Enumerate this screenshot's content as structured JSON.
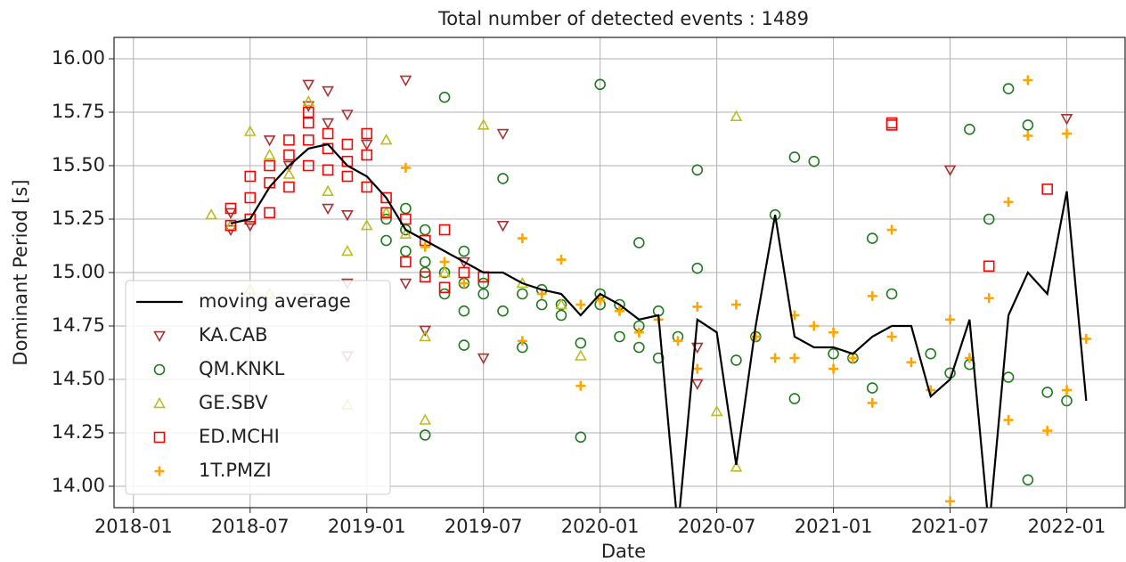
{
  "chart_data": {
    "type": "scatter",
    "title": "Total number of detected events : 1489",
    "x_label": "Date",
    "y_label": "Dominant Period [s]",
    "xlim": [
      "2017-12",
      "2022-04"
    ],
    "xticks": [
      "2018-01",
      "2018-07",
      "2019-01",
      "2019-07",
      "2020-01",
      "2020-07",
      "2021-01",
      "2021-07",
      "2022-01"
    ],
    "ylim": [
      13.9,
      16.1
    ],
    "yticks": [
      {
        "value": 14,
        "label": "14.00"
      },
      {
        "value": 14.25,
        "label": "14.25"
      },
      {
        "value": 14.5,
        "label": "14.50"
      },
      {
        "value": 14.75,
        "label": "14.75"
      },
      {
        "value": 15,
        "label": "15.00"
      },
      {
        "value": 15.25,
        "label": "15.25"
      },
      {
        "value": 15.5,
        "label": "15.50"
      },
      {
        "value": 15.75,
        "label": "15.75"
      },
      {
        "value": 16,
        "label": "16.00"
      }
    ],
    "grid": true,
    "legend": "lower left",
    "series": [
      {
        "name": "moving average",
        "style": "line",
        "color": "#000000",
        "x": [
          "2018-06",
          "2018-07",
          "2018-08",
          "2018-09",
          "2018-10",
          "2018-11",
          "2018-12",
          "2019-01",
          "2019-02",
          "2019-03",
          "2019-04",
          "2019-05",
          "2019-06",
          "2019-07",
          "2019-08",
          "2019-09",
          "2019-10",
          "2019-11",
          "2019-12",
          "2020-01",
          "2020-02",
          "2020-03",
          "2020-04",
          "2020-05",
          "2020-06",
          "2020-07",
          "2020-08",
          "2020-09",
          "2020-10",
          "2020-11",
          "2020-12",
          "2021-01",
          "2021-02",
          "2021-03",
          "2021-04",
          "2021-05",
          "2021-06",
          "2021-07",
          "2021-08",
          "2021-09",
          "2021-10",
          "2021-11",
          "2021-12",
          "2022-01",
          "2022-02"
        ],
        "values": [
          15.23,
          15.25,
          15.4,
          15.5,
          15.58,
          15.6,
          15.5,
          15.45,
          15.35,
          15.2,
          15.15,
          15.1,
          15.05,
          15.0,
          15.0,
          14.95,
          14.92,
          14.9,
          14.8,
          14.9,
          14.85,
          14.78,
          14.8,
          13.8,
          14.78,
          14.72,
          14.1,
          14.75,
          15.27,
          14.7,
          14.65,
          14.65,
          14.62,
          14.7,
          14.75,
          14.75,
          14.42,
          14.5,
          14.78,
          13.8,
          14.8,
          15.0,
          14.9,
          15.38,
          14.4
        ]
      },
      {
        "name": "KA.CAB",
        "style": "marker",
        "marker": "triangle-down",
        "color": "#a83232",
        "x": [
          "2018-06",
          "2018-06",
          "2018-07",
          "2018-08",
          "2018-09",
          "2018-10",
          "2018-10",
          "2018-11",
          "2018-11",
          "2018-12",
          "2018-12",
          "2018-12",
          "2018-12",
          "2018-11",
          "2019-01",
          "2019-03",
          "2019-03",
          "2019-04",
          "2019-06",
          "2019-07",
          "2019-08",
          "2019-08",
          "2020-06",
          "2020-06",
          "2021-07",
          "2022-01",
          "2018-10"
        ],
        "values": [
          15.2,
          15.28,
          15.22,
          15.62,
          15.5,
          15.88,
          15.78,
          15.7,
          15.85,
          15.27,
          15.74,
          14.95,
          14.61,
          15.3,
          15.6,
          15.9,
          14.95,
          14.73,
          15.05,
          14.6,
          15.65,
          15.22,
          14.48,
          14.65,
          15.48,
          15.72,
          14.88
        ]
      },
      {
        "name": "QM.KNKL",
        "style": "marker",
        "marker": "circle",
        "color": "#1f7a1f",
        "x": [
          "2019-02",
          "2019-02",
          "2019-03",
          "2019-03",
          "2019-03",
          "2019-04",
          "2019-04",
          "2019-04",
          "2019-05",
          "2019-05",
          "2019-05",
          "2019-06",
          "2019-06",
          "2019-06",
          "2019-07",
          "2019-07",
          "2019-08",
          "2019-08",
          "2019-09",
          "2019-09",
          "2019-10",
          "2019-10",
          "2019-11",
          "2019-12",
          "2019-12",
          "2020-01",
          "2020-01",
          "2020-02",
          "2020-02",
          "2020-03",
          "2020-03",
          "2020-04",
          "2020-04",
          "2020-05",
          "2020-06",
          "2020-06",
          "2020-08",
          "2020-09",
          "2020-10",
          "2020-11",
          "2020-11",
          "2020-12",
          "2021-01",
          "2021-02",
          "2021-03",
          "2021-03",
          "2021-04",
          "2021-06",
          "2021-07",
          "2021-08",
          "2021-08",
          "2021-09",
          "2021-10",
          "2021-10",
          "2021-11",
          "2021-11",
          "2021-12",
          "2022-01",
          "2019-04",
          "2019-06",
          "2019-11",
          "2020-01",
          "2020-03"
        ],
        "values": [
          15.25,
          15.15,
          15.3,
          15.1,
          15.2,
          15.05,
          15.2,
          14.24,
          15.82,
          15.0,
          14.9,
          15.1,
          14.66,
          14.95,
          14.9,
          14.95,
          14.82,
          15.44,
          14.65,
          14.9,
          14.85,
          14.92,
          14.8,
          14.67,
          14.23,
          14.9,
          15.88,
          14.85,
          14.7,
          14.75,
          15.14,
          14.82,
          14.6,
          14.7,
          15.02,
          15.48,
          14.59,
          14.7,
          15.27,
          15.54,
          14.41,
          15.52,
          14.62,
          14.6,
          14.46,
          15.16,
          14.9,
          14.62,
          14.53,
          14.57,
          15.67,
          15.25,
          15.86,
          14.51,
          15.69,
          14.03,
          14.44,
          14.4,
          15.0,
          14.82,
          14.85,
          14.85,
          14.65
        ]
      },
      {
        "name": "GE.SBV",
        "style": "marker",
        "marker": "triangle-up",
        "color": "#bcbd22",
        "x": [
          "2018-05",
          "2018-06",
          "2018-07",
          "2018-07",
          "2018-08",
          "2018-08",
          "2018-09",
          "2018-10",
          "2018-11",
          "2018-12",
          "2018-12",
          "2019-01",
          "2019-02",
          "2019-02",
          "2019-03",
          "2019-04",
          "2019-04",
          "2019-05",
          "2019-07",
          "2019-09",
          "2019-11",
          "2019-12",
          "2020-07",
          "2020-08",
          "2020-08"
        ],
        "values": [
          15.27,
          15.22,
          15.66,
          14.92,
          15.55,
          14.9,
          15.46,
          15.8,
          15.38,
          15.1,
          14.38,
          15.22,
          15.62,
          15.28,
          15.18,
          14.7,
          14.31,
          15.0,
          15.69,
          14.95,
          14.85,
          14.61,
          14.35,
          15.73,
          14.09
        ]
      },
      {
        "name": "ED.MCHI",
        "style": "marker",
        "marker": "square",
        "color": "#ff0000",
        "x": [
          "2018-06",
          "2018-06",
          "2018-07",
          "2018-07",
          "2018-07",
          "2018-08",
          "2018-08",
          "2018-08",
          "2018-09",
          "2018-09",
          "2018-09",
          "2018-10",
          "2018-10",
          "2018-10",
          "2018-10",
          "2018-11",
          "2018-11",
          "2018-11",
          "2018-12",
          "2018-12",
          "2018-12",
          "2019-01",
          "2019-01",
          "2019-01",
          "2019-02",
          "2019-02",
          "2019-03",
          "2019-03",
          "2019-04",
          "2019-04",
          "2019-05",
          "2019-05",
          "2019-06",
          "2019-07",
          "2021-04",
          "2021-04",
          "2021-09",
          "2021-12"
        ],
        "values": [
          15.22,
          15.3,
          15.25,
          15.35,
          15.45,
          15.42,
          15.5,
          15.28,
          15.55,
          15.62,
          15.4,
          15.7,
          15.75,
          15.5,
          15.62,
          15.58,
          15.65,
          15.48,
          15.52,
          15.6,
          15.45,
          15.55,
          15.4,
          15.65,
          15.35,
          15.28,
          15.25,
          15.05,
          15.15,
          14.98,
          14.93,
          15.2,
          15.0,
          14.98,
          15.7,
          15.69,
          15.03,
          15.39
        ]
      },
      {
        "name": "1T.PMZI",
        "style": "marker",
        "marker": "plus",
        "color": "#ffa500",
        "x": [
          "2019-03",
          "2019-04",
          "2019-05",
          "2019-06",
          "2019-09",
          "2019-09",
          "2019-10",
          "2019-11",
          "2019-12",
          "2019-12",
          "2020-01",
          "2020-02",
          "2020-03",
          "2020-04",
          "2020-05",
          "2020-06",
          "2020-06",
          "2020-08",
          "2020-09",
          "2020-10",
          "2020-11",
          "2020-11",
          "2020-12",
          "2021-01",
          "2021-01",
          "2021-02",
          "2021-03",
          "2021-03",
          "2021-04",
          "2021-04",
          "2021-05",
          "2021-06",
          "2021-07",
          "2021-07",
          "2021-08",
          "2021-09",
          "2021-10",
          "2021-10",
          "2021-11",
          "2021-11",
          "2021-12",
          "2022-01",
          "2022-01",
          "2022-02"
        ],
        "values": [
          15.49,
          15.12,
          15.05,
          14.95,
          15.16,
          14.68,
          14.9,
          15.06,
          14.85,
          14.47,
          14.87,
          14.82,
          14.72,
          14.78,
          14.68,
          14.84,
          14.55,
          14.85,
          14.7,
          14.6,
          14.8,
          14.6,
          14.75,
          14.72,
          14.55,
          14.6,
          14.89,
          14.39,
          14.7,
          15.2,
          14.58,
          14.45,
          13.93,
          14.78,
          14.6,
          14.88,
          14.31,
          15.33,
          15.64,
          15.9,
          14.26,
          14.45,
          15.65,
          14.69
        ]
      }
    ]
  }
}
